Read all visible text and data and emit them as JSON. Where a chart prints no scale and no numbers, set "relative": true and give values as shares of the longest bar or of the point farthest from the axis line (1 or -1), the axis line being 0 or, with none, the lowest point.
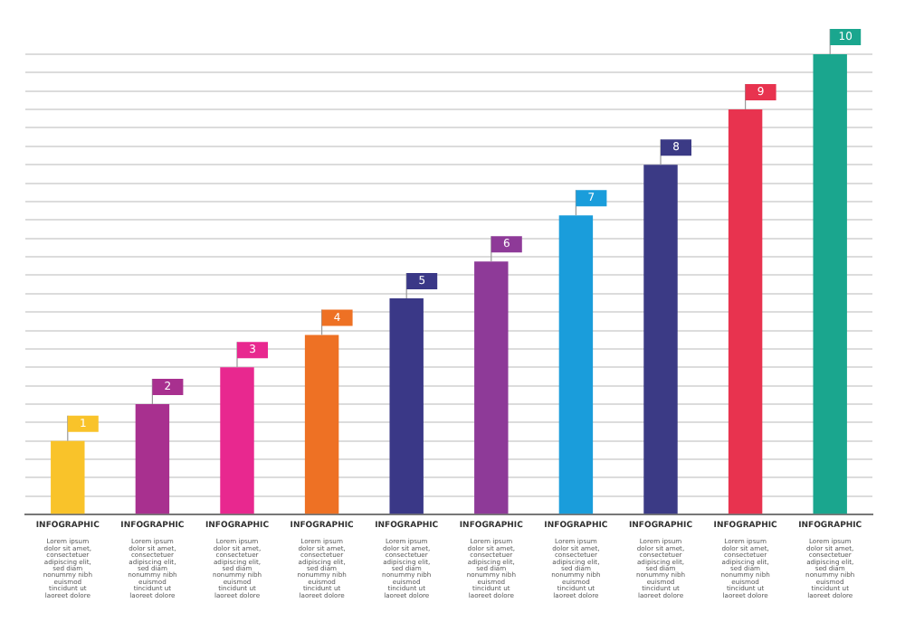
{
  "chart_data": {
    "type": "bar",
    "relative": true,
    "grid": "y",
    "categories": [
      "INFOGRAPHIC",
      "INFOGRAPHIC",
      "INFOGRAPHIC",
      "INFOGRAPHIC",
      "INFOGRAPHIC",
      "INFOGRAPHIC",
      "INFOGRAPHIC",
      "INFOGRAPHIC",
      "INFOGRAPHIC",
      "INFOGRAPHIC"
    ],
    "values": [
      0.16,
      0.24,
      0.32,
      0.39,
      0.47,
      0.55,
      0.65,
      0.76,
      0.88,
      1
    ],
    "colors": [
      "#f9c32a",
      "#a8308f",
      "#e8288f",
      "#ee7124",
      "#3a3887",
      "#8e3a98",
      "#1a9ddb",
      "#3b3a85",
      "#e8334f",
      "#1aa68e"
    ],
    "annotations": [
      "1",
      "2",
      "3",
      "4",
      "5",
      "6",
      "7",
      "8",
      "9",
      "10",
      "Lorem ipsum dolor sit amet, consectetuer adipiscing elit, sed diam nonummy nibh euismod tincidunt ut laoreet dolore",
      "Lorem ipsum dolor sit amet, consectetuer adipiscing elit, sed diam nonummy nibh euismod tincidunt ut laoreet dolore",
      "Lorem ipsum dolor sit amet, consectetuer adipiscing elit, sed diam nonummy nibh euismod tincidunt ut laoreet dolore",
      "Lorem ipsum dolor sit amet, consectetuer adipiscing elit, sed diam nonummy nibh euismod tincidunt ut laoreet dolore",
      "Lorem ipsum dolor sit amet, consectetuer adipiscing elit, sed diam nonummy nibh euismod tincidunt ut laoreet dolore",
      "Lorem ipsum dolor sit amet, consectetuer adipiscing elit, sed diam nonummy nibh euismod tincidunt ut laoreet dolore",
      "Lorem ipsum dolor sit amet, consectetuer adipiscing elit, sed diam nonummy nibh euismod tincidunt ut laoreet dolore",
      "Lorem ipsum dolor sit amet, consectetuer adipiscing elit, sed diam nonummy nibh euismod tincidunt ut laoreet dolore",
      "Lorem ipsum dolor sit amet, consectetuer adipiscing elit, sed diam nonummy nibh euismod tincidunt ut laoreet dolore",
      "Lorem ipsum dolor sit amet, consectetuer adipiscing elit, sed diam nonummy nibh euismod tincidunt ut laoreet dolore"
    ]
  }
}
